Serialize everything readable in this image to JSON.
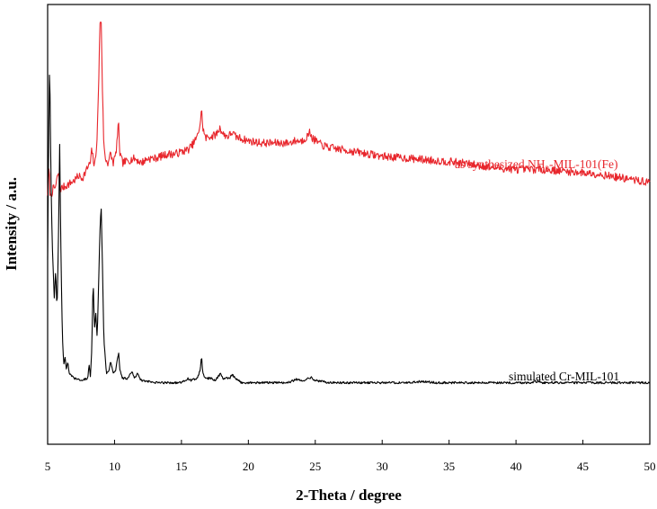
{
  "chart_data": {
    "type": "line",
    "xlabel": "2-Theta / degree",
    "ylabel": "Intensity / a.u.",
    "xlim": [
      5,
      50
    ],
    "ylim": [
      0,
      100
    ],
    "x_ticks": [
      "5",
      "10",
      "15",
      "20",
      "25",
      "30",
      "35",
      "40",
      "45",
      "50"
    ],
    "grid": false,
    "legend": "inline labels near traces (right side)",
    "series": [
      {
        "name": "as synthesized NH2-MIL-101(Fe)",
        "label_main": "as synthesized NH",
        "label_sub": "2",
        "label_tail": "-MIL-101(Fe)",
        "color": "#e8262c",
        "points": [
          [
            5.0,
            57
          ],
          [
            5.1,
            63
          ],
          [
            5.2,
            56
          ],
          [
            5.4,
            58
          ],
          [
            5.6,
            58.5
          ],
          [
            5.8,
            62
          ],
          [
            5.9,
            58
          ],
          [
            6.2,
            58.5
          ],
          [
            6.5,
            59
          ],
          [
            7.0,
            60
          ],
          [
            7.3,
            61
          ],
          [
            7.6,
            60.5
          ],
          [
            8.0,
            63
          ],
          [
            8.2,
            64
          ],
          [
            8.3,
            67
          ],
          [
            8.4,
            65
          ],
          [
            8.5,
            63
          ],
          [
            8.6,
            66
          ],
          [
            8.7,
            70
          ],
          [
            8.8,
            80
          ],
          [
            8.9,
            95
          ],
          [
            9.0,
            97
          ],
          [
            9.1,
            80
          ],
          [
            9.2,
            68
          ],
          [
            9.3,
            65
          ],
          [
            9.5,
            64
          ],
          [
            9.7,
            66
          ],
          [
            9.9,
            64
          ],
          [
            10.1,
            66
          ],
          [
            10.3,
            73
          ],
          [
            10.4,
            66
          ],
          [
            10.6,
            64
          ],
          [
            11.0,
            64.5
          ],
          [
            11.5,
            65
          ],
          [
            12.0,
            64
          ],
          [
            12.5,
            65
          ],
          [
            13.0,
            65
          ],
          [
            13.5,
            65.5
          ],
          [
            14.0,
            66
          ],
          [
            14.5,
            66
          ],
          [
            15.0,
            66.5
          ],
          [
            15.5,
            67
          ],
          [
            15.8,
            68
          ],
          [
            16.0,
            69
          ],
          [
            16.2,
            70
          ],
          [
            16.4,
            73
          ],
          [
            16.5,
            76
          ],
          [
            16.6,
            72
          ],
          [
            16.8,
            69.5
          ],
          [
            17.0,
            70
          ],
          [
            17.3,
            70
          ],
          [
            17.6,
            70.5
          ],
          [
            17.9,
            72
          ],
          [
            18.1,
            70.5
          ],
          [
            18.5,
            70
          ],
          [
            18.8,
            71
          ],
          [
            19.0,
            70
          ],
          [
            19.5,
            69.5
          ],
          [
            20.0,
            69
          ],
          [
            21.0,
            68.5
          ],
          [
            22.0,
            68.5
          ],
          [
            23.0,
            68.5
          ],
          [
            23.5,
            69
          ],
          [
            24.0,
            69
          ],
          [
            24.4,
            70
          ],
          [
            24.6,
            71
          ],
          [
            24.8,
            69.5
          ],
          [
            25.5,
            68
          ],
          [
            26.0,
            67.5
          ],
          [
            27.0,
            67
          ],
          [
            28.0,
            66.5
          ],
          [
            29.0,
            66
          ],
          [
            30.0,
            65.5
          ],
          [
            32.0,
            65
          ],
          [
            34.0,
            64.5
          ],
          [
            36.0,
            64
          ],
          [
            38.0,
            63
          ],
          [
            40.0,
            62.5
          ],
          [
            42.0,
            62.5
          ],
          [
            44.0,
            62
          ],
          [
            46.0,
            61.5
          ],
          [
            48.0,
            60.5
          ],
          [
            50.0,
            59.5
          ]
        ]
      },
      {
        "name": "simulated Cr-MIL-101",
        "label": "simulated Cr-MIL-101",
        "color": "#000000",
        "points": [
          [
            5.0,
            42
          ],
          [
            5.05,
            60
          ],
          [
            5.15,
            88
          ],
          [
            5.25,
            60
          ],
          [
            5.35,
            45
          ],
          [
            5.5,
            33
          ],
          [
            5.6,
            40
          ],
          [
            5.7,
            30
          ],
          [
            5.8,
            45
          ],
          [
            5.9,
            68
          ],
          [
            6.0,
            42
          ],
          [
            6.1,
            25
          ],
          [
            6.2,
            18
          ],
          [
            6.3,
            20
          ],
          [
            6.4,
            17
          ],
          [
            6.5,
            19
          ],
          [
            6.6,
            16
          ],
          [
            7.0,
            15
          ],
          [
            7.5,
            14.5
          ],
          [
            8.0,
            15
          ],
          [
            8.1,
            18
          ],
          [
            8.2,
            15
          ],
          [
            8.3,
            22
          ],
          [
            8.4,
            38
          ],
          [
            8.5,
            26
          ],
          [
            8.6,
            30
          ],
          [
            8.7,
            24
          ],
          [
            8.8,
            35
          ],
          [
            8.9,
            48
          ],
          [
            9.0,
            54
          ],
          [
            9.1,
            40
          ],
          [
            9.2,
            24
          ],
          [
            9.4,
            16
          ],
          [
            9.6,
            17
          ],
          [
            9.7,
            19
          ],
          [
            9.9,
            16
          ],
          [
            10.1,
            17
          ],
          [
            10.3,
            21
          ],
          [
            10.4,
            17
          ],
          [
            10.6,
            15
          ],
          [
            11.0,
            15
          ],
          [
            11.3,
            16.5
          ],
          [
            11.5,
            15
          ],
          [
            11.7,
            16
          ],
          [
            12.0,
            14.5
          ],
          [
            13.0,
            14
          ],
          [
            14.0,
            14
          ],
          [
            15.0,
            14
          ],
          [
            15.3,
            14.5
          ],
          [
            15.5,
            15
          ],
          [
            15.7,
            14.5
          ],
          [
            16.2,
            15
          ],
          [
            16.4,
            17
          ],
          [
            16.5,
            20
          ],
          [
            16.6,
            16
          ],
          [
            16.8,
            15
          ],
          [
            17.2,
            15
          ],
          [
            17.5,
            14.5
          ],
          [
            17.9,
            16
          ],
          [
            18.1,
            15
          ],
          [
            18.6,
            15
          ],
          [
            18.8,
            15.8
          ],
          [
            19.0,
            15
          ],
          [
            19.5,
            14
          ],
          [
            20.0,
            14
          ],
          [
            21.0,
            14
          ],
          [
            22.0,
            14
          ],
          [
            23.0,
            14
          ],
          [
            23.6,
            14.8
          ],
          [
            24.0,
            14.3
          ],
          [
            24.4,
            15
          ],
          [
            24.7,
            15.2
          ],
          [
            25.0,
            14.5
          ],
          [
            25.5,
            14.3
          ],
          [
            26.0,
            14
          ],
          [
            27.0,
            14
          ],
          [
            28.0,
            14
          ],
          [
            29.0,
            14
          ],
          [
            30.0,
            14
          ],
          [
            32.0,
            14
          ],
          [
            33.0,
            14.3
          ],
          [
            34.0,
            14
          ],
          [
            35.0,
            14
          ],
          [
            38.0,
            14
          ],
          [
            41.0,
            14
          ],
          [
            41.5,
            14.3
          ],
          [
            42.0,
            14
          ],
          [
            45.0,
            14
          ],
          [
            48.0,
            14
          ],
          [
            50.0,
            14
          ]
        ]
      }
    ]
  }
}
